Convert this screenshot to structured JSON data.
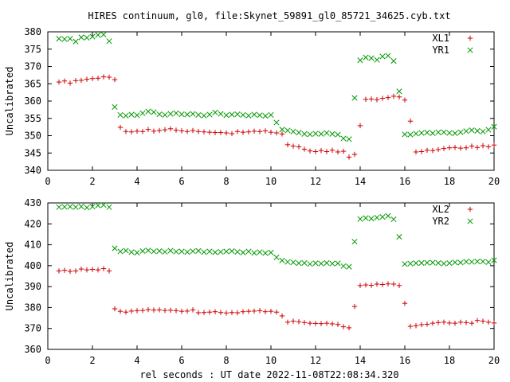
{
  "figure": {
    "title": "HIRES continuum, gl0, file:Skynet_59891_gl0_85721_34625.cyb.txt",
    "xlabel": "rel seconds : UT date 2022-11-08T22:08:34.320"
  },
  "colors": {
    "red": "#cc0000",
    "green": "#009900",
    "axis": "#000000"
  },
  "chart_data": [
    {
      "type": "scatter",
      "ylabel": "Uncalibrated",
      "xlim": [
        0,
        20
      ],
      "ylim": [
        340,
        380
      ],
      "x_ticks": [
        0,
        2,
        4,
        6,
        8,
        10,
        12,
        14,
        16,
        18,
        20
      ],
      "y_ticks": [
        340,
        345,
        350,
        355,
        360,
        365,
        370,
        375,
        380
      ],
      "legend_position": "top-right",
      "series": [
        {
          "name": "XL1",
          "marker": "plus",
          "color": "#cc0000",
          "x": [
            0.5,
            0.75,
            1.0,
            1.25,
            1.5,
            1.75,
            2.0,
            2.25,
            2.5,
            2.75,
            3.0,
            3.25,
            3.5,
            3.75,
            4.0,
            4.25,
            4.5,
            4.75,
            5.0,
            5.25,
            5.5,
            5.75,
            6.0,
            6.25,
            6.5,
            6.75,
            7.0,
            7.25,
            7.5,
            7.75,
            8.0,
            8.25,
            8.5,
            8.75,
            9.0,
            9.25,
            9.5,
            9.75,
            10.0,
            10.25,
            10.5,
            10.75,
            11.0,
            11.25,
            11.5,
            11.75,
            12.0,
            12.25,
            12.5,
            12.75,
            13.0,
            13.25,
            13.5,
            13.75,
            14.0,
            14.25,
            14.5,
            14.75,
            15.0,
            15.25,
            15.5,
            15.75,
            16.0,
            16.25,
            16.5,
            16.75,
            17.0,
            17.25,
            17.5,
            17.75,
            18.0,
            18.25,
            18.5,
            18.75,
            19.0,
            19.25,
            19.5,
            19.75,
            20.0
          ],
          "y": [
            365.5,
            365.8,
            365.2,
            365.9,
            366.0,
            366.3,
            366.5,
            366.6,
            367.0,
            366.9,
            366.2,
            352.4,
            351.2,
            351.1,
            351.3,
            351.2,
            351.8,
            351.3,
            351.5,
            351.7,
            352.0,
            351.6,
            351.4,
            351.2,
            351.5,
            351.2,
            351.1,
            351.0,
            350.9,
            350.9,
            350.8,
            350.6,
            351.2,
            351.0,
            351.1,
            351.3,
            351.2,
            351.4,
            351.0,
            350.8,
            350.5,
            347.4,
            347.0,
            346.8,
            346.1,
            345.6,
            345.4,
            345.7,
            345.4,
            345.8,
            345.3,
            345.5,
            343.8,
            344.6,
            352.9,
            360.5,
            360.6,
            360.4,
            360.8,
            361.0,
            361.4,
            361.2,
            360.3,
            354.2,
            345.3,
            345.4,
            345.8,
            345.7,
            346.0,
            346.3,
            346.5,
            346.6,
            346.4,
            346.5,
            347.0,
            346.6,
            347.1,
            346.8,
            347.3
          ]
        },
        {
          "name": "YR1",
          "marker": "cross",
          "color": "#009900",
          "x": [
            0.5,
            0.75,
            1.0,
            1.25,
            1.5,
            1.75,
            2.0,
            2.25,
            2.5,
            2.75,
            3.0,
            3.25,
            3.5,
            3.75,
            4.0,
            4.25,
            4.5,
            4.75,
            5.0,
            5.25,
            5.5,
            5.75,
            6.0,
            6.25,
            6.5,
            6.75,
            7.0,
            7.25,
            7.5,
            7.75,
            8.0,
            8.25,
            8.5,
            8.75,
            9.0,
            9.25,
            9.5,
            9.75,
            10.0,
            10.25,
            10.5,
            10.75,
            11.0,
            11.25,
            11.5,
            11.75,
            12.0,
            12.25,
            12.5,
            12.75,
            13.0,
            13.25,
            13.5,
            13.75,
            14.0,
            14.25,
            14.5,
            14.75,
            15.0,
            15.25,
            15.5,
            15.75,
            16.0,
            16.25,
            16.5,
            16.75,
            17.0,
            17.25,
            17.5,
            17.75,
            18.0,
            18.25,
            18.5,
            18.75,
            19.0,
            19.25,
            19.5,
            19.75,
            20.0
          ],
          "y": [
            378.0,
            377.9,
            378.0,
            377.2,
            378.4,
            378.3,
            378.6,
            379.1,
            379.2,
            377.3,
            358.3,
            356.0,
            355.8,
            356.1,
            355.9,
            356.5,
            357.0,
            356.8,
            356.2,
            356.0,
            356.3,
            356.5,
            356.2,
            356.1,
            356.3,
            356.0,
            355.8,
            356.1,
            356.7,
            356.3,
            355.9,
            356.1,
            356.2,
            356.0,
            355.8,
            356.1,
            355.9,
            355.7,
            356.0,
            353.8,
            351.8,
            351.5,
            351.2,
            350.9,
            350.5,
            350.4,
            350.6,
            350.5,
            350.8,
            350.5,
            350.3,
            349.2,
            349.0,
            360.9,
            371.8,
            372.6,
            372.4,
            371.9,
            372.9,
            373.1,
            371.6,
            362.8,
            350.4,
            350.3,
            350.6,
            350.8,
            350.9,
            350.7,
            351.0,
            351.0,
            350.8,
            350.7,
            351.0,
            351.3,
            351.6,
            351.4,
            351.2,
            351.7,
            352.6
          ]
        }
      ]
    },
    {
      "type": "scatter",
      "ylabel": "Uncalibrated",
      "xlim": [
        0,
        20
      ],
      "ylim": [
        360,
        430
      ],
      "x_ticks": [
        0,
        2,
        4,
        6,
        8,
        10,
        12,
        14,
        16,
        18,
        20
      ],
      "y_ticks": [
        360,
        370,
        380,
        390,
        400,
        410,
        420,
        430
      ],
      "legend_position": "top-right",
      "series": [
        {
          "name": "XL2",
          "marker": "plus",
          "color": "#cc0000",
          "x": [
            0.5,
            0.75,
            1.0,
            1.25,
            1.5,
            1.75,
            2.0,
            2.25,
            2.5,
            2.75,
            3.0,
            3.25,
            3.5,
            3.75,
            4.0,
            4.25,
            4.5,
            4.75,
            5.0,
            5.25,
            5.5,
            5.75,
            6.0,
            6.25,
            6.5,
            6.75,
            7.0,
            7.25,
            7.5,
            7.75,
            8.0,
            8.25,
            8.5,
            8.75,
            9.0,
            9.25,
            9.5,
            9.75,
            10.0,
            10.25,
            10.5,
            10.75,
            11.0,
            11.25,
            11.5,
            11.75,
            12.0,
            12.25,
            12.5,
            12.75,
            13.0,
            13.25,
            13.5,
            13.75,
            14.0,
            14.25,
            14.5,
            14.75,
            15.0,
            15.25,
            15.5,
            15.75,
            16.0,
            16.25,
            16.5,
            16.75,
            17.0,
            17.25,
            17.5,
            17.75,
            18.0,
            18.25,
            18.5,
            18.75,
            19.0,
            19.25,
            19.5,
            19.75,
            20.0
          ],
          "y": [
            397.5,
            397.8,
            397.3,
            397.5,
            398.4,
            398.0,
            398.2,
            398.0,
            398.6,
            397.5,
            379.4,
            378.2,
            377.8,
            378.3,
            378.5,
            378.6,
            379.0,
            378.8,
            378.9,
            378.6,
            378.7,
            378.5,
            378.2,
            378.3,
            378.9,
            377.5,
            377.6,
            377.8,
            378.0,
            377.6,
            377.4,
            377.6,
            377.5,
            378.0,
            378.2,
            378.3,
            378.5,
            378.0,
            378.2,
            377.8,
            376.0,
            373.0,
            373.5,
            373.2,
            372.8,
            372.5,
            372.4,
            372.3,
            372.5,
            372.2,
            371.9,
            370.8,
            370.3,
            380.5,
            390.5,
            390.8,
            390.6,
            391.2,
            391.0,
            391.3,
            391.2,
            390.5,
            382.0,
            371.0,
            371.3,
            371.8,
            372.0,
            372.5,
            372.8,
            373.0,
            372.6,
            372.5,
            373.0,
            372.8,
            372.5,
            373.8,
            373.5,
            373.0,
            372.6
          ]
        },
        {
          "name": "YR2",
          "marker": "cross",
          "color": "#009900",
          "x": [
            0.5,
            0.75,
            1.0,
            1.25,
            1.5,
            1.75,
            2.0,
            2.25,
            2.5,
            2.75,
            3.0,
            3.25,
            3.5,
            3.75,
            4.0,
            4.25,
            4.5,
            4.75,
            5.0,
            5.25,
            5.5,
            5.75,
            6.0,
            6.25,
            6.5,
            6.75,
            7.0,
            7.25,
            7.5,
            7.75,
            8.0,
            8.25,
            8.5,
            8.75,
            9.0,
            9.25,
            9.5,
            9.75,
            10.0,
            10.25,
            10.5,
            10.75,
            11.0,
            11.25,
            11.5,
            11.75,
            12.0,
            12.25,
            12.5,
            12.75,
            13.0,
            13.25,
            13.5,
            13.75,
            14.0,
            14.25,
            14.5,
            14.75,
            15.0,
            15.25,
            15.5,
            15.75,
            16.0,
            16.25,
            16.5,
            16.75,
            17.0,
            17.25,
            17.5,
            17.75,
            18.0,
            18.25,
            18.5,
            18.75,
            19.0,
            19.25,
            19.5,
            19.75,
            20.0
          ],
          "y": [
            428.0,
            428.1,
            428.2,
            428.0,
            428.3,
            427.8,
            428.2,
            428.8,
            429.0,
            428.0,
            408.3,
            406.8,
            407.2,
            406.5,
            406.2,
            407.0,
            407.3,
            406.8,
            407.0,
            406.6,
            407.2,
            406.7,
            406.8,
            406.5,
            406.9,
            407.1,
            406.5,
            406.8,
            406.4,
            406.6,
            406.8,
            407.0,
            406.6,
            406.3,
            406.8,
            406.1,
            406.5,
            406.0,
            406.3,
            404.0,
            402.5,
            401.8,
            401.6,
            401.2,
            401.3,
            400.8,
            401.2,
            401.0,
            401.3,
            401.0,
            401.1,
            399.8,
            399.5,
            411.5,
            422.3,
            422.8,
            422.5,
            423.0,
            423.3,
            423.8,
            422.2,
            413.8,
            400.8,
            401.0,
            401.2,
            401.3,
            401.4,
            401.5,
            401.3,
            401.0,
            401.2,
            401.6,
            401.5,
            401.9,
            401.8,
            402.0,
            402.0,
            401.7,
            402.6
          ]
        }
      ]
    }
  ]
}
